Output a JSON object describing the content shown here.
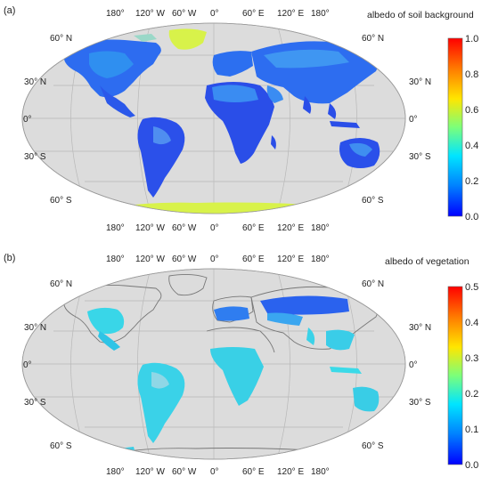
{
  "panels": [
    {
      "tag": "(a)",
      "title": "albedo of soil background",
      "lon_labels": [
        "180°",
        "120° W",
        "60° W",
        "0°",
        "60° E",
        "120° E",
        "180°"
      ],
      "lat_labels_left": [
        "60° N",
        "30° N",
        "0°",
        "30° S",
        "60° S"
      ],
      "lat_labels_right": [
        "60° N",
        "30° N",
        "0°",
        "30° S",
        "60° S"
      ],
      "colorbar_ticks": [
        "1.0",
        "0.8",
        "0.6",
        "0.4",
        "0.2",
        "0.0"
      ]
    },
    {
      "tag": "(b)",
      "title": "albedo of vegetation",
      "lon_labels": [
        "180°",
        "120° W",
        "60° W",
        "0°",
        "60° E",
        "120° E",
        "180°"
      ],
      "lat_labels_left": [
        "60° N",
        "30° N",
        "0°",
        "30° S",
        "60° S"
      ],
      "lat_labels_right": [
        "60° N",
        "30° N",
        "0°",
        "30° S",
        "60° S"
      ],
      "colorbar_ticks": [
        "0.5",
        "0.4",
        "0.3",
        "0.2",
        "0.1",
        "0.0"
      ]
    }
  ],
  "colors": {
    "ocean": "#dcdcdc",
    "graticule": "#b8b8b8",
    "land_low": "#1f49e8",
    "land_mid": "#2f8ff0",
    "land_cyan": "#39d6e8",
    "snow": "#d8f24a",
    "colormap": [
      "#0000ff",
      "#0080ff",
      "#00e5ff",
      "#7cff7a",
      "#ffe600",
      "#ff7a00",
      "#ff0000"
    ]
  }
}
